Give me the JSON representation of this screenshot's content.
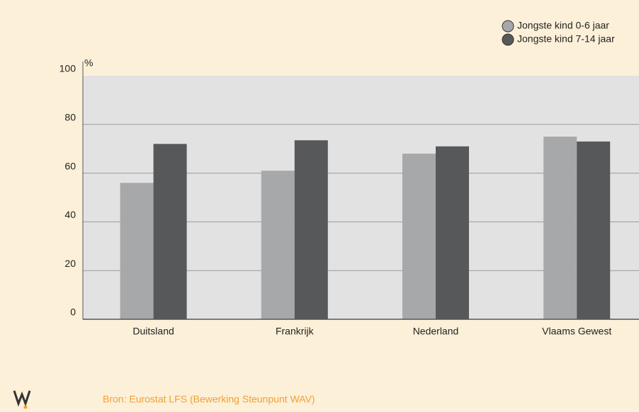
{
  "chart_data": {
    "type": "bar",
    "y_label": "%",
    "categories": [
      "Duitsland",
      "Frankrijk",
      "Nederland",
      "Vlaams Gewest"
    ],
    "series": [
      {
        "name": "Jongste kind 0-6 jaar",
        "color": "#a7a8aa",
        "values": [
          56,
          61,
          68,
          75
        ]
      },
      {
        "name": "Jongste kind 7-14 jaar",
        "color": "#57585a",
        "values": [
          72,
          73.5,
          71,
          73
        ]
      }
    ],
    "ylim": [
      0,
      100
    ],
    "yticks": [
      0,
      20,
      40,
      60,
      80,
      100
    ],
    "grid": true,
    "legend": "top-right",
    "source": "Bron: Eurostat LFS (Bewerking Steunpunt WAV)"
  }
}
